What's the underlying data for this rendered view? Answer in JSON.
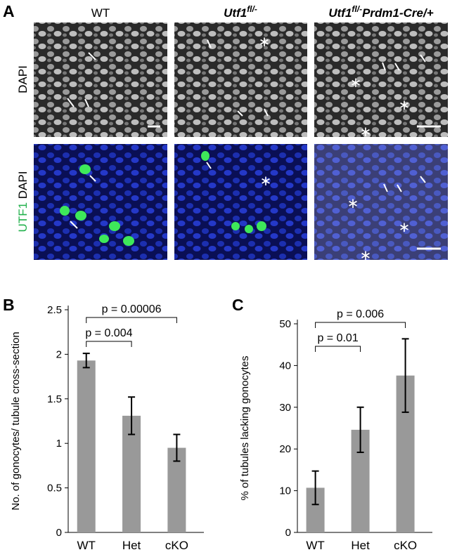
{
  "panel_a": {
    "label": "A",
    "columns": [
      {
        "text": "WT"
      },
      {
        "gene": "Utf1",
        "sup": "fl/-"
      },
      {
        "gene": "Utf1",
        "sup": "fl/-",
        "suffix": "Prdm1-Cre/+"
      }
    ],
    "rows": [
      {
        "labels": [
          "DAPI"
        ]
      },
      {
        "labels": [
          "UTF1",
          "DAPI"
        ]
      }
    ]
  },
  "chart_data": [
    {
      "type": "bar",
      "panel_label": "B",
      "ylabel": "No. of gonocytes/ tubule cross-section",
      "categories": [
        "WT",
        "Het",
        "cKO"
      ],
      "values": [
        1.93,
        1.31,
        0.95
      ],
      "errors": [
        0.08,
        0.21,
        0.15
      ],
      "color": "#999999",
      "ylim": [
        0,
        2.5
      ],
      "yticks": [
        0,
        0.5,
        1,
        1.5,
        2,
        2.5
      ],
      "annotations": [
        "p = 0.004",
        "p = 0.00006"
      ]
    },
    {
      "type": "bar",
      "panel_label": "C",
      "ylabel": "% of tubules lacking gonocytes",
      "categories": [
        "WT",
        "Het",
        "cKO"
      ],
      "values": [
        10.7,
        24.6,
        37.6
      ],
      "errors": [
        4,
        5.4,
        8.8
      ],
      "color": "#999999",
      "ylim": [
        0,
        50
      ],
      "yticks": [
        0,
        10,
        20,
        30,
        40,
        50
      ],
      "annotations": [
        "p = 0.01",
        "p = 0.006"
      ]
    }
  ]
}
